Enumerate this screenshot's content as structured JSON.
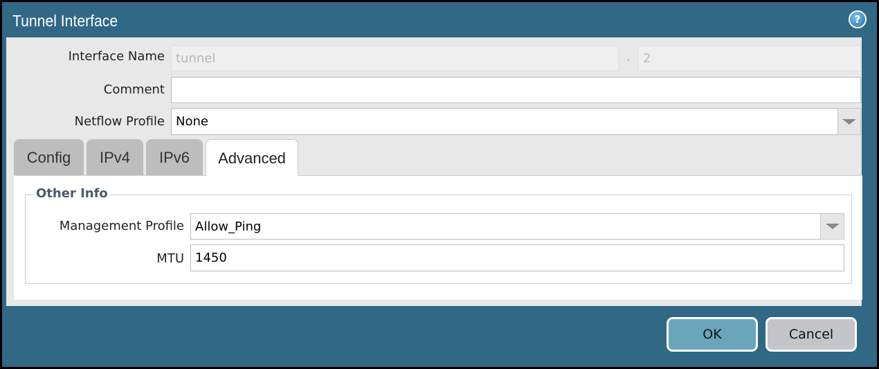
{
  "window": {
    "title": "Tunnel Interface",
    "help_icon": "help-icon"
  },
  "form": {
    "interface_name": {
      "label": "Interface Name",
      "value": "tunnel",
      "separator": ".",
      "unit": "2"
    },
    "comment": {
      "label": "Comment",
      "value": ""
    },
    "netflow_profile": {
      "label": "Netflow Profile",
      "value": "None"
    }
  },
  "tabs": [
    {
      "label": "Config"
    },
    {
      "label": "IPv4"
    },
    {
      "label": "IPv6"
    },
    {
      "label": "Advanced",
      "active": true
    }
  ],
  "advanced": {
    "section_title": "Other Info",
    "management_profile": {
      "label": "Management Profile",
      "value": "Allow_Ping"
    },
    "mtu": {
      "label": "MTU",
      "value": "1450"
    }
  },
  "buttons": {
    "ok": "OK",
    "cancel": "Cancel"
  },
  "colors": {
    "titlebar": "#306885",
    "ok_button": "#6aa5bb",
    "cancel_button": "#c3c5c9"
  }
}
